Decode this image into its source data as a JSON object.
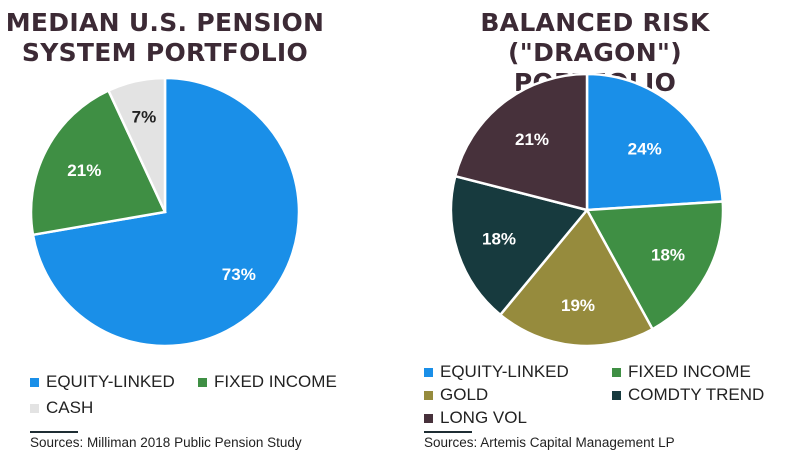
{
  "chart_data": [
    {
      "type": "pie",
      "title": "MEDIAN U.S. PENSION SYSTEM PORTFOLIO",
      "slices": [
        {
          "label": "EQUITY-LINKED",
          "value": 73,
          "display": "73%",
          "color": "#1a8fe8",
          "text_color": "#ffffff"
        },
        {
          "label": "FIXED INCOME",
          "value": 21,
          "display": "21%",
          "color": "#3f8f44",
          "text_color": "#ffffff"
        },
        {
          "label": "CASH",
          "value": 7,
          "display": "7%",
          "color": "#e3e3e3",
          "text_color": "#222222"
        }
      ],
      "legend": [
        "EQUITY-LINKED",
        "FIXED INCOME",
        "CASH"
      ],
      "legend_placement": "bottom",
      "source": "Sources: Milliman 2018 Public Pension Study"
    },
    {
      "type": "pie",
      "title": "BALANCED RISK (\"DRAGON\") PORTFOLIO",
      "slices": [
        {
          "label": "EQUITY-LINKED",
          "value": 24,
          "display": "24%",
          "color": "#1a8fe8",
          "text_color": "#ffffff"
        },
        {
          "label": "FIXED INCOME",
          "value": 18,
          "display": "18%",
          "color": "#3f8f44",
          "text_color": "#ffffff"
        },
        {
          "label": "GOLD",
          "value": 19,
          "display": "19%",
          "color": "#968b3d",
          "text_color": "#ffffff"
        },
        {
          "label": "COMDTY TREND",
          "value": 18,
          "display": "18%",
          "color": "#173a3e",
          "text_color": "#ffffff"
        },
        {
          "label": "LONG VOL",
          "value": 21,
          "display": "21%",
          "color": "#47313b",
          "text_color": "#ffffff"
        }
      ],
      "legend": [
        "EQUITY-LINKED",
        "FIXED INCOME",
        "GOLD",
        "COMDTY TREND",
        "LONG VOL"
      ],
      "legend_placement": "bottom",
      "source": "Sources: Artemis Capital Management LP"
    }
  ],
  "titles": {
    "left_line1": "MEDIAN U.S. PENSION",
    "left_line2": "SYSTEM PORTFOLIO",
    "right_line1": "BALANCED RISK",
    "right_line2": "(\"DRAGON\") PORTFOLIO"
  }
}
